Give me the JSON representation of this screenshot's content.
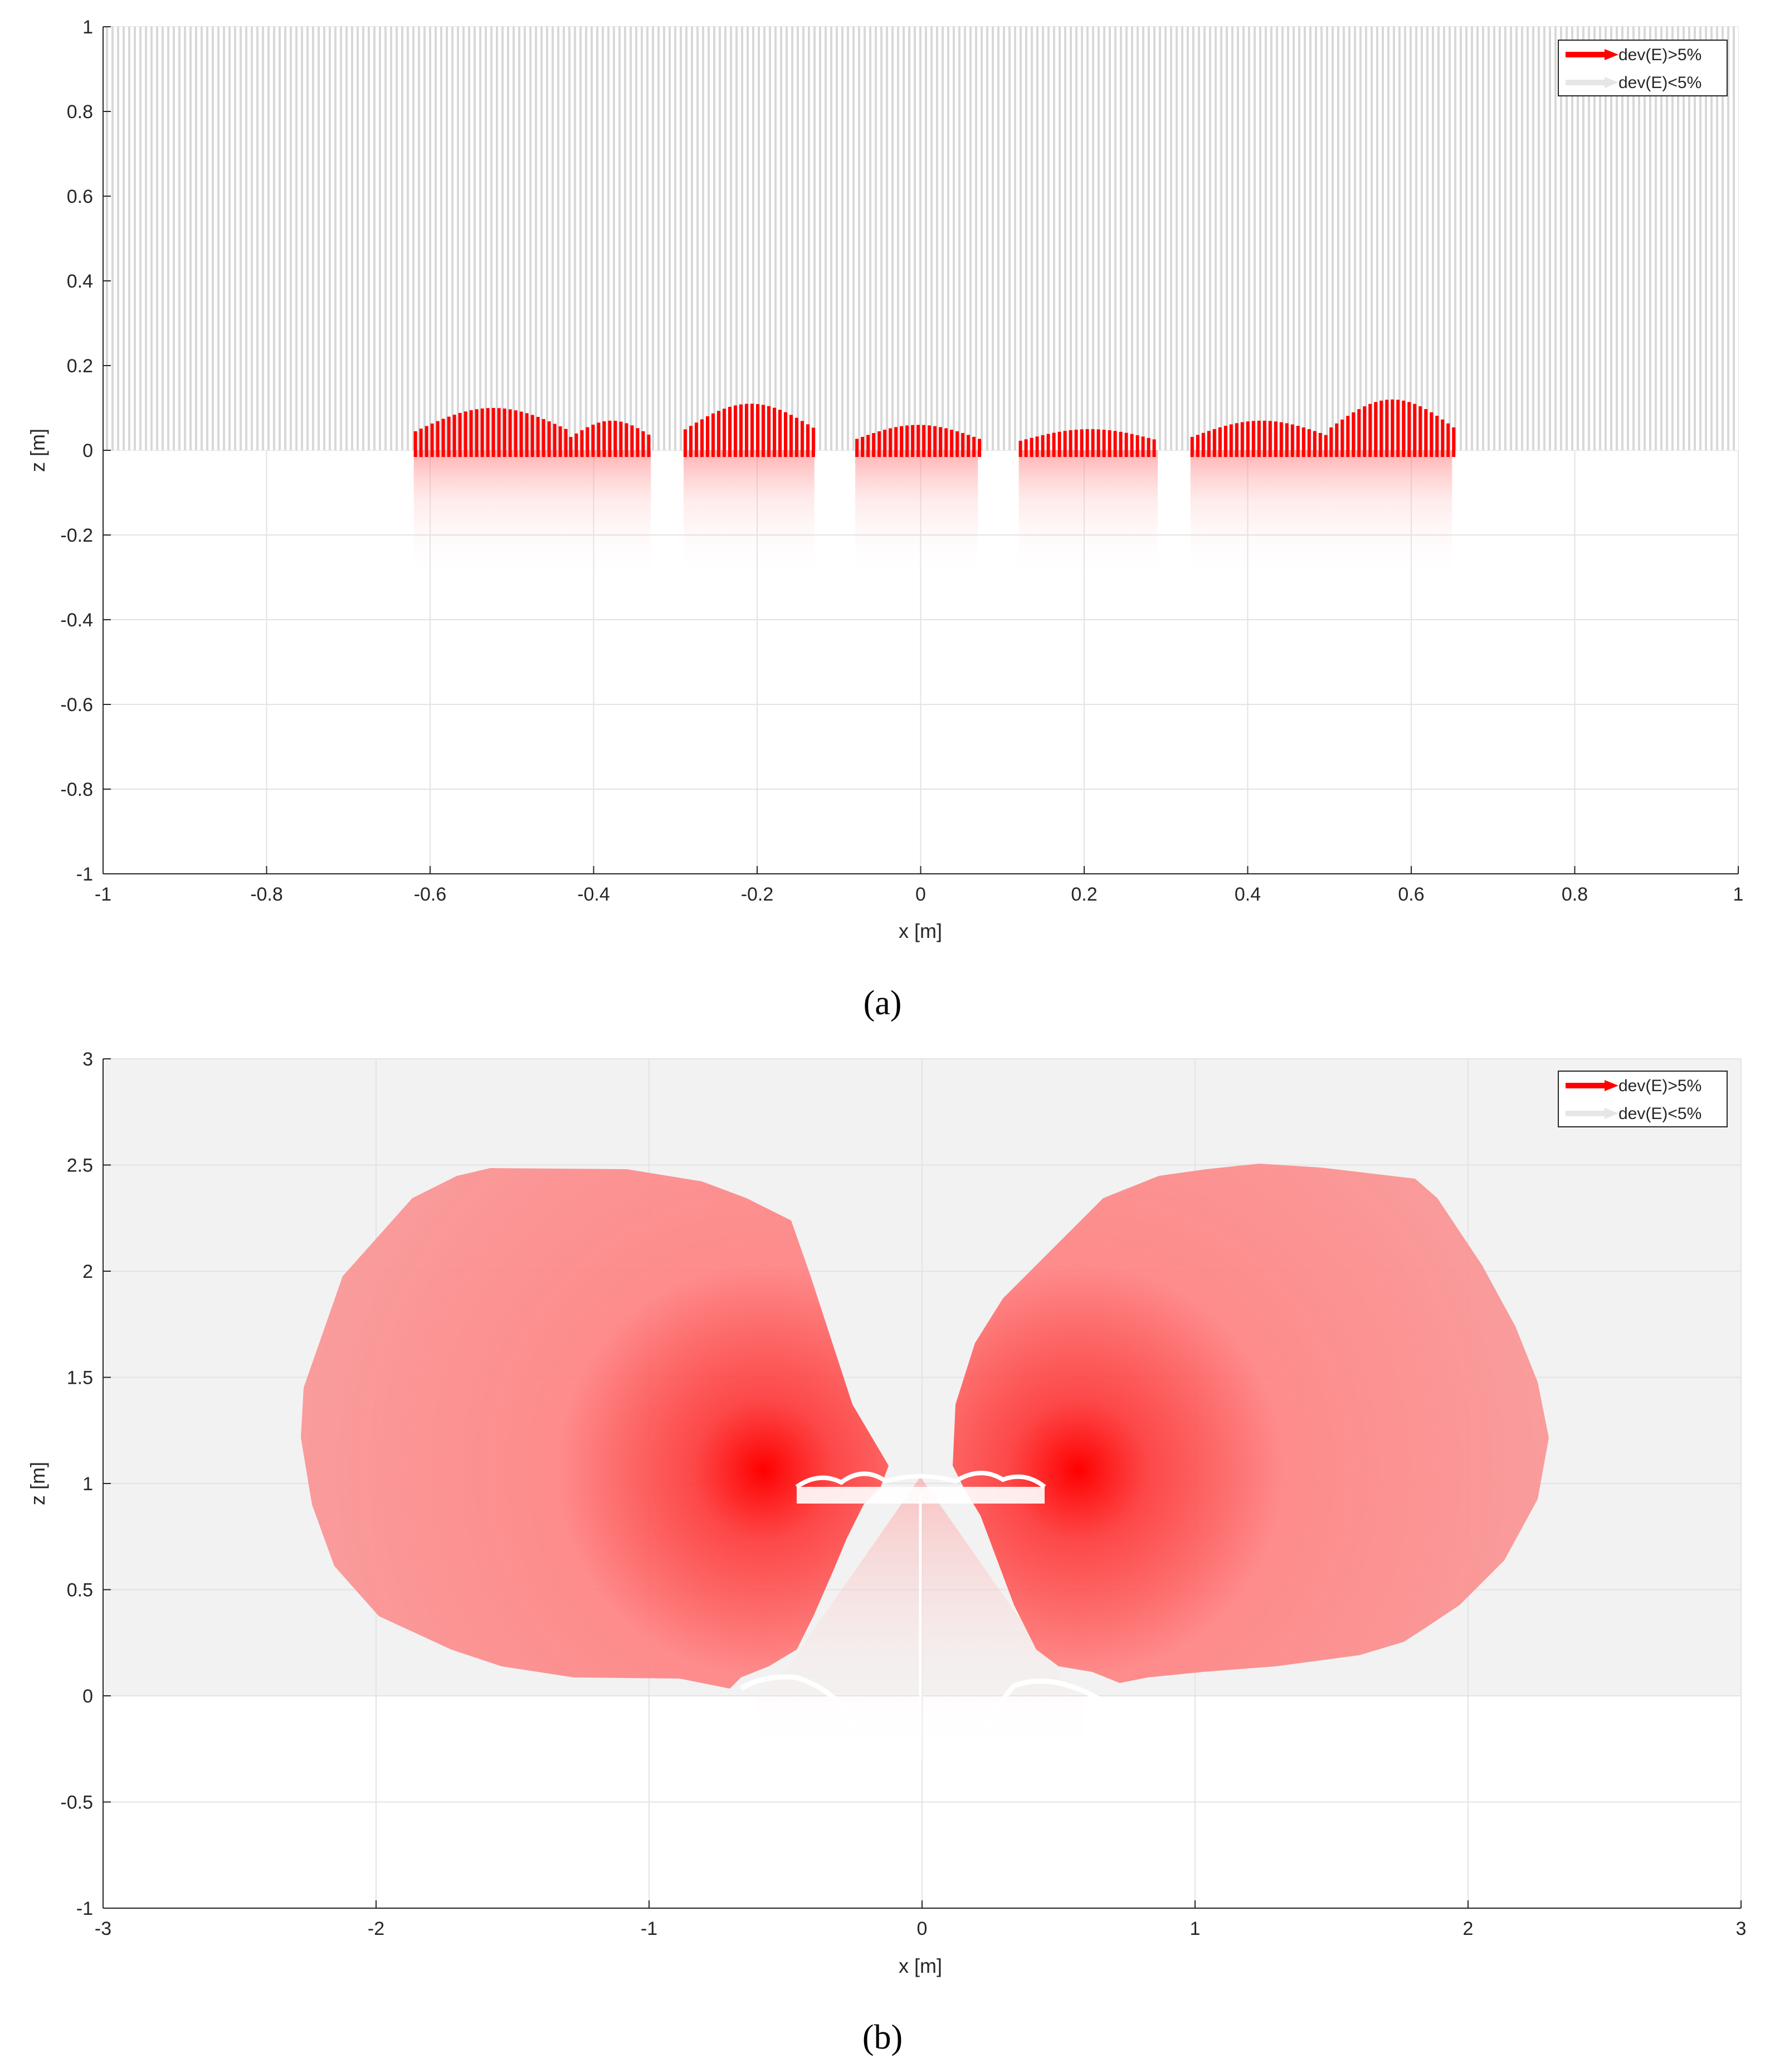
{
  "figure": {
    "panel_labels": [
      "(a)",
      "(b)"
    ]
  },
  "chart_data": [
    {
      "panel": "(a)",
      "type": "scatter",
      "xlabel": "x [m]",
      "ylabel": "z [m]",
      "xlim": [
        -1,
        1
      ],
      "ylim": [
        -1,
        1
      ],
      "xticks": [
        -1,
        -0.8,
        -0.6,
        -0.4,
        -0.2,
        0,
        0.2,
        0.4,
        0.6,
        0.8,
        1
      ],
      "yticks": [
        -1,
        -0.8,
        -0.6,
        -0.4,
        -0.2,
        0,
        0.2,
        0.4,
        0.6,
        0.8,
        1
      ],
      "tick_labels_x": [
        "-1",
        "-0.8",
        "-0.6",
        "-0.4",
        "-0.2",
        "0",
        "0.2",
        "0.4",
        "0.6",
        "0.8",
        "1"
      ],
      "tick_labels_y": [
        "-1",
        "-0.8",
        "-0.6",
        "-0.4",
        "-0.2",
        "0",
        "0.2",
        "0.4",
        "0.6",
        "0.8",
        "1"
      ],
      "grid": true,
      "legend_position": "top-right",
      "series": [
        {
          "name": "dev(E)>5%",
          "color": "#ff0000"
        },
        {
          "name": "dev(E)<5%",
          "color": "#e6e6e6"
        }
      ],
      "regions": {
        "low_dev_region": {
          "x": [
            -1,
            1
          ],
          "z": [
            0,
            1
          ]
        },
        "high_dev_clusters": [
          {
            "x": [
              -0.62,
              -0.43
            ],
            "z_top": 0.1
          },
          {
            "x": [
              -0.43,
              -0.33
            ],
            "z_top": 0.07
          },
          {
            "x": [
              -0.29,
              -0.13
            ],
            "z_top": 0.11
          },
          {
            "x": [
              -0.08,
              0.07
            ],
            "z_top": 0.06
          },
          {
            "x": [
              0.12,
              0.29
            ],
            "z_top": 0.05
          },
          {
            "x": [
              0.33,
              0.5
            ],
            "z_top": 0.07
          },
          {
            "x": [
              0.5,
              0.65
            ],
            "z_top": 0.12
          }
        ]
      }
    },
    {
      "panel": "(b)",
      "type": "scatter",
      "xlabel": "x [m]",
      "ylabel": "z [m]",
      "xlim": [
        -3,
        3
      ],
      "ylim": [
        -1,
        3
      ],
      "xticks": [
        -3,
        -2,
        -1,
        0,
        1,
        2,
        3
      ],
      "yticks": [
        -1,
        -0.5,
        0,
        0.5,
        1,
        1.5,
        2,
        2.5,
        3
      ],
      "tick_labels_x": [
        "-3",
        "-2",
        "-1",
        "0",
        "1",
        "2",
        "3"
      ],
      "tick_labels_y": [
        "-1",
        "-0.5",
        "0",
        "0.5",
        "1",
        "1.5",
        "2",
        "2.5",
        "3"
      ],
      "grid": true,
      "legend_position": "top-right",
      "series": [
        {
          "name": "dev(E)>5%",
          "color": "#ff0000"
        },
        {
          "name": "dev(E)<5%",
          "color": "#e6e6e6"
        }
      ],
      "regions": {
        "low_dev_region": {
          "x": [
            -3,
            3
          ],
          "z": [
            0,
            3
          ]
        },
        "high_dev_lobes": [
          {
            "side": "left",
            "x": [
              -2.28,
              -0.12
            ],
            "z": [
              0.05,
              2.5
            ],
            "peak": [
              -0.57,
              1.05
            ]
          },
          {
            "side": "right",
            "x": [
              0.12,
              2.3
            ],
            "z": [
              0.05,
              2.51
            ],
            "peak": [
              0.57,
              1.05
            ]
          }
        ],
        "source_z": 1.0,
        "lower_white_region": {
          "x": [
            -0.6,
            0.6
          ],
          "z": [
            -0.3,
            0.1
          ]
        }
      }
    }
  ]
}
